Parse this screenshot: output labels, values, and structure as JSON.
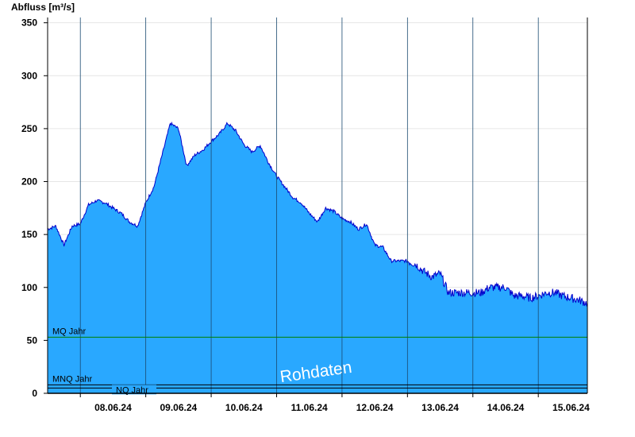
{
  "chart_data": {
    "type": "area",
    "ylabel": "Abfluss [m³/s]",
    "ylim": [
      0,
      355
    ],
    "yticks": [
      0,
      50,
      100,
      150,
      200,
      250,
      300,
      350
    ],
    "xlim": [
      "07.06.24 12:00",
      "15.06.24 18:00"
    ],
    "categories": [
      "08.06.24",
      "09.06.24",
      "10.06.24",
      "11.06.24",
      "12.06.24",
      "13.06.24",
      "14.06.24",
      "15.06.24"
    ],
    "grid": true,
    "fill_color": "#29a8ff",
    "line_color": "#0000cc",
    "series": [
      {
        "x": [
          "07.06.24 12:00",
          "07.06.24 15:00",
          "07.06.24 18:00",
          "07.06.24 21:00",
          "08.06.24 00:00",
          "08.06.24 03:00",
          "08.06.24 06:00",
          "08.06.24 09:00",
          "08.06.24 12:00",
          "08.06.24 15:00",
          "08.06.24 18:00",
          "08.06.24 21:00",
          "09.06.24 00:00",
          "09.06.24 03:00",
          "09.06.24 06:00",
          "09.06.24 09:00",
          "09.06.24 12:00",
          "09.06.24 15:00",
          "09.06.24 18:00",
          "09.06.24 21:00",
          "10.06.24 00:00",
          "10.06.24 03:00",
          "10.06.24 06:00",
          "10.06.24 09:00",
          "10.06.24 12:00",
          "10.06.24 15:00",
          "10.06.24 18:00",
          "10.06.24 21:00",
          "11.06.24 00:00",
          "11.06.24 03:00",
          "11.06.24 06:00",
          "11.06.24 09:00",
          "11.06.24 12:00",
          "11.06.24 15:00",
          "11.06.24 18:00",
          "11.06.24 21:00",
          "12.06.24 00:00",
          "12.06.24 03:00",
          "12.06.24 06:00",
          "12.06.24 09:00",
          "12.06.24 12:00",
          "12.06.24 15:00",
          "12.06.24 18:00",
          "12.06.24 21:00",
          "13.06.24 00:00",
          "13.06.24 03:00",
          "13.06.24 06:00",
          "13.06.24 09:00",
          "13.06.24 12:00",
          "13.06.24 15:00",
          "13.06.24 18:00",
          "13.06.24 21:00",
          "14.06.24 00:00",
          "14.06.24 03:00",
          "14.06.24 06:00",
          "14.06.24 09:00",
          "14.06.24 12:00",
          "14.06.24 15:00",
          "14.06.24 18:00",
          "14.06.24 21:00",
          "15.06.24 00:00",
          "15.06.24 03:00",
          "15.06.24 06:00",
          "15.06.24 09:00",
          "15.06.24 12:00",
          "15.06.24 15:00",
          "15.06.24 18:00"
        ],
        "y": [
          155,
          158,
          140,
          158,
          160,
          178,
          182,
          180,
          175,
          170,
          162,
          158,
          180,
          195,
          225,
          255,
          250,
          215,
          225,
          230,
          238,
          245,
          255,
          248,
          235,
          228,
          234,
          218,
          205,
          195,
          185,
          180,
          170,
          162,
          175,
          172,
          165,
          162,
          155,
          160,
          140,
          138,
          125,
          125,
          125,
          122,
          115,
          110,
          113,
          95,
          95,
          95,
          95,
          95,
          100,
          100,
          100,
          92,
          92,
          90,
          92,
          95,
          95,
          92,
          90,
          88,
          85
        ]
      }
    ],
    "reference_lines": [
      {
        "label": "MQ Jahr",
        "value": 53,
        "color": "#008000"
      },
      {
        "label": "MNQ Jahr",
        "value": 8,
        "color": "#000000"
      },
      {
        "label": "NQ Jahr",
        "value": 5,
        "color": "#000000"
      }
    ],
    "watermark": "Rohdaten"
  }
}
